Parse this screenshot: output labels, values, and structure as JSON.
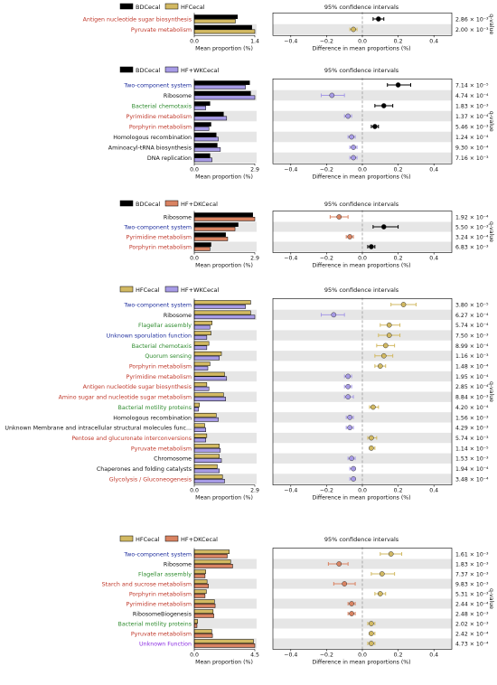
{
  "colors": {
    "stripe": "#e6e6e6",
    "dashed": "#9a9a9a",
    "red": "#c0392b",
    "blue": "#1f2f9e",
    "green": "#2e8b2e",
    "purple": "#8a2be2",
    "black": "#111111",
    "BDCecal": "#000000",
    "HFCecal": "#d2b962",
    "HF+WKCecal": "#a79be6",
    "HF+DKCecal": "#d98362"
  },
  "common": {
    "ci_title": "95% confidence intervals",
    "xlabel_left": "Mean proportion (%)",
    "xlabel_right": "Difference in mean proportions (%)",
    "qvalue_label": "q-value"
  },
  "chart_data": [
    {
      "type": "bar",
      "groups": [
        "BDCecal",
        "HFCecal"
      ],
      "left_ticks": [
        "0.0",
        "1.4"
      ],
      "left_max": 1.4,
      "diff_ticks": [
        "−0.4",
        "−0.2",
        "0.0",
        "0.2",
        "0.4"
      ],
      "rows": [
        {
          "name": "Antigen nucleotide sugar biosynthesis",
          "color": "red",
          "a": 1.0,
          "b": 0.95,
          "diff": 0.09,
          "lo": 0.06,
          "hi": 0.12,
          "dot": "BDCecal",
          "q": "2.86 × 10⁻³"
        },
        {
          "name": "Pyruvate metabolism",
          "color": "red",
          "a": 1.33,
          "b": 1.4,
          "diff": -0.05,
          "lo": -0.07,
          "hi": -0.03,
          "dot": "HFCecal",
          "q": "2.00 × 10⁻³"
        }
      ]
    },
    {
      "type": "bar",
      "groups": [
        "BDCecal",
        "HF+WKCecal"
      ],
      "left_ticks": [
        "0.0",
        "2.9"
      ],
      "left_max": 2.9,
      "diff_ticks": [
        "−0.4",
        "−0.2",
        "0.0",
        "0.2",
        "0.4"
      ],
      "rows": [
        {
          "name": "Two-component system",
          "color": "blue",
          "a": 2.65,
          "b": 2.45,
          "diff": 0.2,
          "lo": 0.14,
          "hi": 0.27,
          "dot": "BDCecal",
          "q": "7.14 × 10⁻⁵"
        },
        {
          "name": "Ribosome",
          "color": "black",
          "a": 2.7,
          "b": 2.9,
          "diff": -0.17,
          "lo": -0.23,
          "hi": -0.1,
          "dot": "HF+WKCecal",
          "q": "4.74 × 10⁻⁴"
        },
        {
          "name": "Bacterial chemotaxis",
          "color": "green",
          "a": 0.75,
          "b": 0.55,
          "diff": 0.12,
          "lo": 0.07,
          "hi": 0.17,
          "dot": "BDCecal",
          "q": "1.83 × 10⁻³"
        },
        {
          "name": "Pyrimidine metabolism",
          "color": "red",
          "a": 1.4,
          "b": 1.55,
          "diff": -0.08,
          "lo": -0.1,
          "hi": -0.06,
          "dot": "HF+WKCecal",
          "q": "1.37 × 10⁻⁴"
        },
        {
          "name": "Porphyrin metabolism",
          "color": "red",
          "a": 0.8,
          "b": 0.7,
          "diff": 0.07,
          "lo": 0.05,
          "hi": 0.09,
          "dot": "BDCecal",
          "q": "5.46 × 10⁻³"
        },
        {
          "name": "Homologous recombination",
          "color": "black",
          "a": 1.05,
          "b": 1.15,
          "diff": -0.06,
          "lo": -0.08,
          "hi": -0.04,
          "dot": "HF+WKCecal",
          "q": "1.24 × 10⁻⁴"
        },
        {
          "name": "Aminoacyl-tRNA biosynthesis",
          "color": "black",
          "a": 1.1,
          "b": 1.25,
          "diff": -0.05,
          "lo": -0.07,
          "hi": -0.03,
          "dot": "HF+WKCecal",
          "q": "9.30 × 10⁻⁴"
        },
        {
          "name": "DNA replication",
          "color": "black",
          "a": 0.75,
          "b": 0.85,
          "diff": -0.05,
          "lo": -0.07,
          "hi": -0.03,
          "dot": "HF+WKCecal",
          "q": "7.16 × 10⁻³"
        }
      ]
    },
    {
      "type": "bar",
      "groups": [
        "BDCecal",
        "HF+DKCecal"
      ],
      "left_ticks": [
        "0.0",
        "2.9"
      ],
      "left_max": 2.9,
      "diff_ticks": [
        "−0.4",
        "−0.2",
        "0.0",
        "0.2",
        "0.4"
      ],
      "rows": [
        {
          "name": "Ribosome",
          "color": "black",
          "a": 2.8,
          "b": 2.9,
          "diff": -0.13,
          "lo": -0.18,
          "hi": -0.08,
          "dot": "HF+DKCecal",
          "q": "1.92 × 10⁻⁴"
        },
        {
          "name": "Two-component system",
          "color": "blue",
          "a": 2.1,
          "b": 1.95,
          "diff": 0.12,
          "lo": 0.06,
          "hi": 0.2,
          "dot": "BDCecal",
          "q": "5.50 × 10⁻³"
        },
        {
          "name": "Pyrimidine metabolism",
          "color": "red",
          "a": 1.5,
          "b": 1.6,
          "diff": -0.07,
          "lo": -0.09,
          "hi": -0.05,
          "dot": "HF+DKCecal",
          "q": "3.24 × 10⁻⁴"
        },
        {
          "name": "Porphyrin metabolism",
          "color": "red",
          "a": 0.8,
          "b": 0.75,
          "diff": 0.05,
          "lo": 0.03,
          "hi": 0.07,
          "dot": "BDCecal",
          "q": "6.83 × 10⁻³"
        }
      ]
    },
    {
      "type": "bar",
      "groups": [
        "HFCecal",
        "HF+WKCecal"
      ],
      "left_ticks": [
        "0.0",
        "2.9"
      ],
      "left_max": 2.9,
      "diff_ticks": [
        "−0.4",
        "−0.2",
        "0.0",
        "0.2",
        "0.4"
      ],
      "rows": [
        {
          "name": "Two-component system",
          "color": "blue",
          "a": 2.7,
          "b": 2.45,
          "diff": 0.23,
          "lo": 0.16,
          "hi": 0.3,
          "dot": "HFCecal",
          "q": "3.80 × 10⁻⁵"
        },
        {
          "name": "Ribosome",
          "color": "black",
          "a": 2.7,
          "b": 2.9,
          "diff": -0.16,
          "lo": -0.23,
          "hi": -0.1,
          "dot": "HF+WKCecal",
          "q": "6.27 × 10⁻⁴"
        },
        {
          "name": "Flagellar assembly",
          "color": "green",
          "a": 0.85,
          "b": 0.75,
          "diff": 0.15,
          "lo": 0.1,
          "hi": 0.21,
          "dot": "HFCecal",
          "q": "5.74 × 10⁻⁴"
        },
        {
          "name": "Unknown sporulation function",
          "color": "blue",
          "a": 0.8,
          "b": 0.6,
          "diff": 0.15,
          "lo": 0.09,
          "hi": 0.21,
          "dot": "HFCecal",
          "q": "7.50 × 10⁻³"
        },
        {
          "name": "Bacterial chemotaxis",
          "color": "green",
          "a": 0.7,
          "b": 0.6,
          "diff": 0.13,
          "lo": 0.08,
          "hi": 0.18,
          "dot": "HFCecal",
          "q": "8.99 × 10⁻⁴"
        },
        {
          "name": "Quorum sensing",
          "color": "green",
          "a": 1.3,
          "b": 1.2,
          "diff": 0.12,
          "lo": 0.07,
          "hi": 0.17,
          "dot": "HFCecal",
          "q": "1.16 × 10⁻³"
        },
        {
          "name": "Porphyrin metabolism",
          "color": "red",
          "a": 0.75,
          "b": 0.65,
          "diff": 0.1,
          "lo": 0.07,
          "hi": 0.13,
          "dot": "HFCecal",
          "q": "1.48 × 10⁻⁴"
        },
        {
          "name": "Pyrimidine metabolism",
          "color": "red",
          "a": 1.45,
          "b": 1.55,
          "diff": -0.08,
          "lo": -0.1,
          "hi": -0.06,
          "dot": "HF+WKCecal",
          "q": "1.95 × 10⁻⁴"
        },
        {
          "name": "Antigen nucleotide sugar biosynthesis",
          "color": "red",
          "a": 0.6,
          "b": 0.7,
          "diff": -0.08,
          "lo": -0.1,
          "hi": -0.06,
          "dot": "HF+WKCecal",
          "q": "2.85 × 10⁻⁴"
        },
        {
          "name": "Amino sugar and nucleotide sugar metabolism",
          "color": "red",
          "a": 1.4,
          "b": 1.5,
          "diff": -0.08,
          "lo": -0.1,
          "hi": -0.05,
          "dot": "HF+WKCecal",
          "q": "8.84 × 10⁻³"
        },
        {
          "name": "Bacterial motility proteins",
          "color": "green",
          "a": 0.25,
          "b": 0.2,
          "diff": 0.06,
          "lo": 0.04,
          "hi": 0.09,
          "dot": "HFCecal",
          "q": "4.20 × 10⁻⁴"
        },
        {
          "name": "Homologous recombination",
          "color": "black",
          "a": 1.05,
          "b": 1.15,
          "diff": -0.07,
          "lo": -0.09,
          "hi": -0.05,
          "dot": "HF+WKCecal",
          "q": "1.56 × 10⁻³"
        },
        {
          "name": "Unknown Membrane and intracellular structural molecules func...",
          "color": "black",
          "a": 0.5,
          "b": 0.55,
          "diff": -0.07,
          "lo": -0.09,
          "hi": -0.05,
          "dot": "HF+WKCecal",
          "q": "4.29 × 10⁻³"
        },
        {
          "name": "Pentose and glucuronate interconversions",
          "color": "red",
          "a": 0.6,
          "b": 0.55,
          "diff": 0.05,
          "lo": 0.03,
          "hi": 0.08,
          "dot": "HFCecal",
          "q": "5.74 × 10⁻³"
        },
        {
          "name": "Pyruvate metabolism",
          "color": "red",
          "a": 1.2,
          "b": 1.25,
          "diff": 0.05,
          "lo": 0.04,
          "hi": 0.07,
          "dot": "HFCecal",
          "q": "1.14 × 10⁻⁵"
        },
        {
          "name": "Chromosome",
          "color": "black",
          "a": 1.2,
          "b": 1.3,
          "diff": -0.06,
          "lo": -0.08,
          "hi": -0.04,
          "dot": "HF+WKCecal",
          "q": "1.53 × 10⁻³"
        },
        {
          "name": "Chaperones and folding catalysts",
          "color": "black",
          "a": 1.1,
          "b": 1.2,
          "diff": -0.05,
          "lo": -0.07,
          "hi": -0.04,
          "dot": "HF+WKCecal",
          "q": "1.94 × 10⁻⁴"
        },
        {
          "name": "Glycolysis / Gluconeogenesis",
          "color": "red",
          "a": 1.35,
          "b": 1.45,
          "diff": -0.05,
          "lo": -0.07,
          "hi": -0.04,
          "dot": "HF+WKCecal",
          "q": "3.48 × 10⁻⁴"
        }
      ]
    },
    {
      "type": "bar",
      "groups": [
        "HFCecal",
        "HF+DKCecal"
      ],
      "left_ticks": [
        "0.0",
        "4.5"
      ],
      "left_max": 4.5,
      "diff_ticks": [
        "−0.4",
        "−0.2",
        "0.0",
        "0.2",
        "0.4"
      ],
      "rows": [
        {
          "name": "Two-component system",
          "color": "blue",
          "a": 2.6,
          "b": 2.45,
          "diff": 0.16,
          "lo": 0.1,
          "hi": 0.22,
          "dot": "HFCecal",
          "q": "1.61 × 10⁻³"
        },
        {
          "name": "Ribosome",
          "color": "black",
          "a": 2.7,
          "b": 2.85,
          "diff": -0.13,
          "lo": -0.19,
          "hi": -0.08,
          "dot": "HF+DKCecal",
          "q": "1.83 × 10⁻³"
        },
        {
          "name": "Flagellar assembly",
          "color": "green",
          "a": 0.85,
          "b": 0.8,
          "diff": 0.11,
          "lo": 0.05,
          "hi": 0.18,
          "dot": "HFCecal",
          "q": "7.37 × 10⁻³"
        },
        {
          "name": "Starch and sucrose metabolism",
          "color": "red",
          "a": 0.95,
          "b": 1.05,
          "diff": -0.1,
          "lo": -0.16,
          "hi": -0.04,
          "dot": "HF+DKCecal",
          "q": "9.83 × 10⁻³"
        },
        {
          "name": "Porphyrin metabolism",
          "color": "red",
          "a": 0.9,
          "b": 0.8,
          "diff": 0.1,
          "lo": 0.07,
          "hi": 0.13,
          "dot": "HFCecal",
          "q": "5.31 × 10⁻³"
        },
        {
          "name": "Pyrimidine metabolism",
          "color": "red",
          "a": 1.5,
          "b": 1.55,
          "diff": -0.06,
          "lo": -0.08,
          "hi": -0.04,
          "dot": "HF+DKCecal",
          "q": "2.44 × 10⁻⁴"
        },
        {
          "name": "RibosomeBiogenesis",
          "color": "black",
          "a": 1.4,
          "b": 1.45,
          "diff": -0.06,
          "lo": -0.08,
          "hi": -0.04,
          "dot": "HF+DKCecal",
          "q": "2.48 × 10⁻³"
        },
        {
          "name": "Bacterial motility proteins",
          "color": "green",
          "a": 0.25,
          "b": 0.2,
          "diff": 0.05,
          "lo": 0.03,
          "hi": 0.07,
          "dot": "HFCecal",
          "q": "2.02 × 10⁻³"
        },
        {
          "name": "Pyruvate metabolism",
          "color": "red",
          "a": 1.3,
          "b": 1.35,
          "diff": 0.05,
          "lo": 0.04,
          "hi": 0.07,
          "dot": "HFCecal",
          "q": "2.42 × 10⁻⁴"
        },
        {
          "name": "Unknown Function",
          "color": "purple",
          "a": 4.4,
          "b": 4.5,
          "diff": 0.05,
          "lo": 0.03,
          "hi": 0.07,
          "dot": "HFCecal",
          "q": "4.73 × 10⁻⁴"
        }
      ]
    }
  ]
}
